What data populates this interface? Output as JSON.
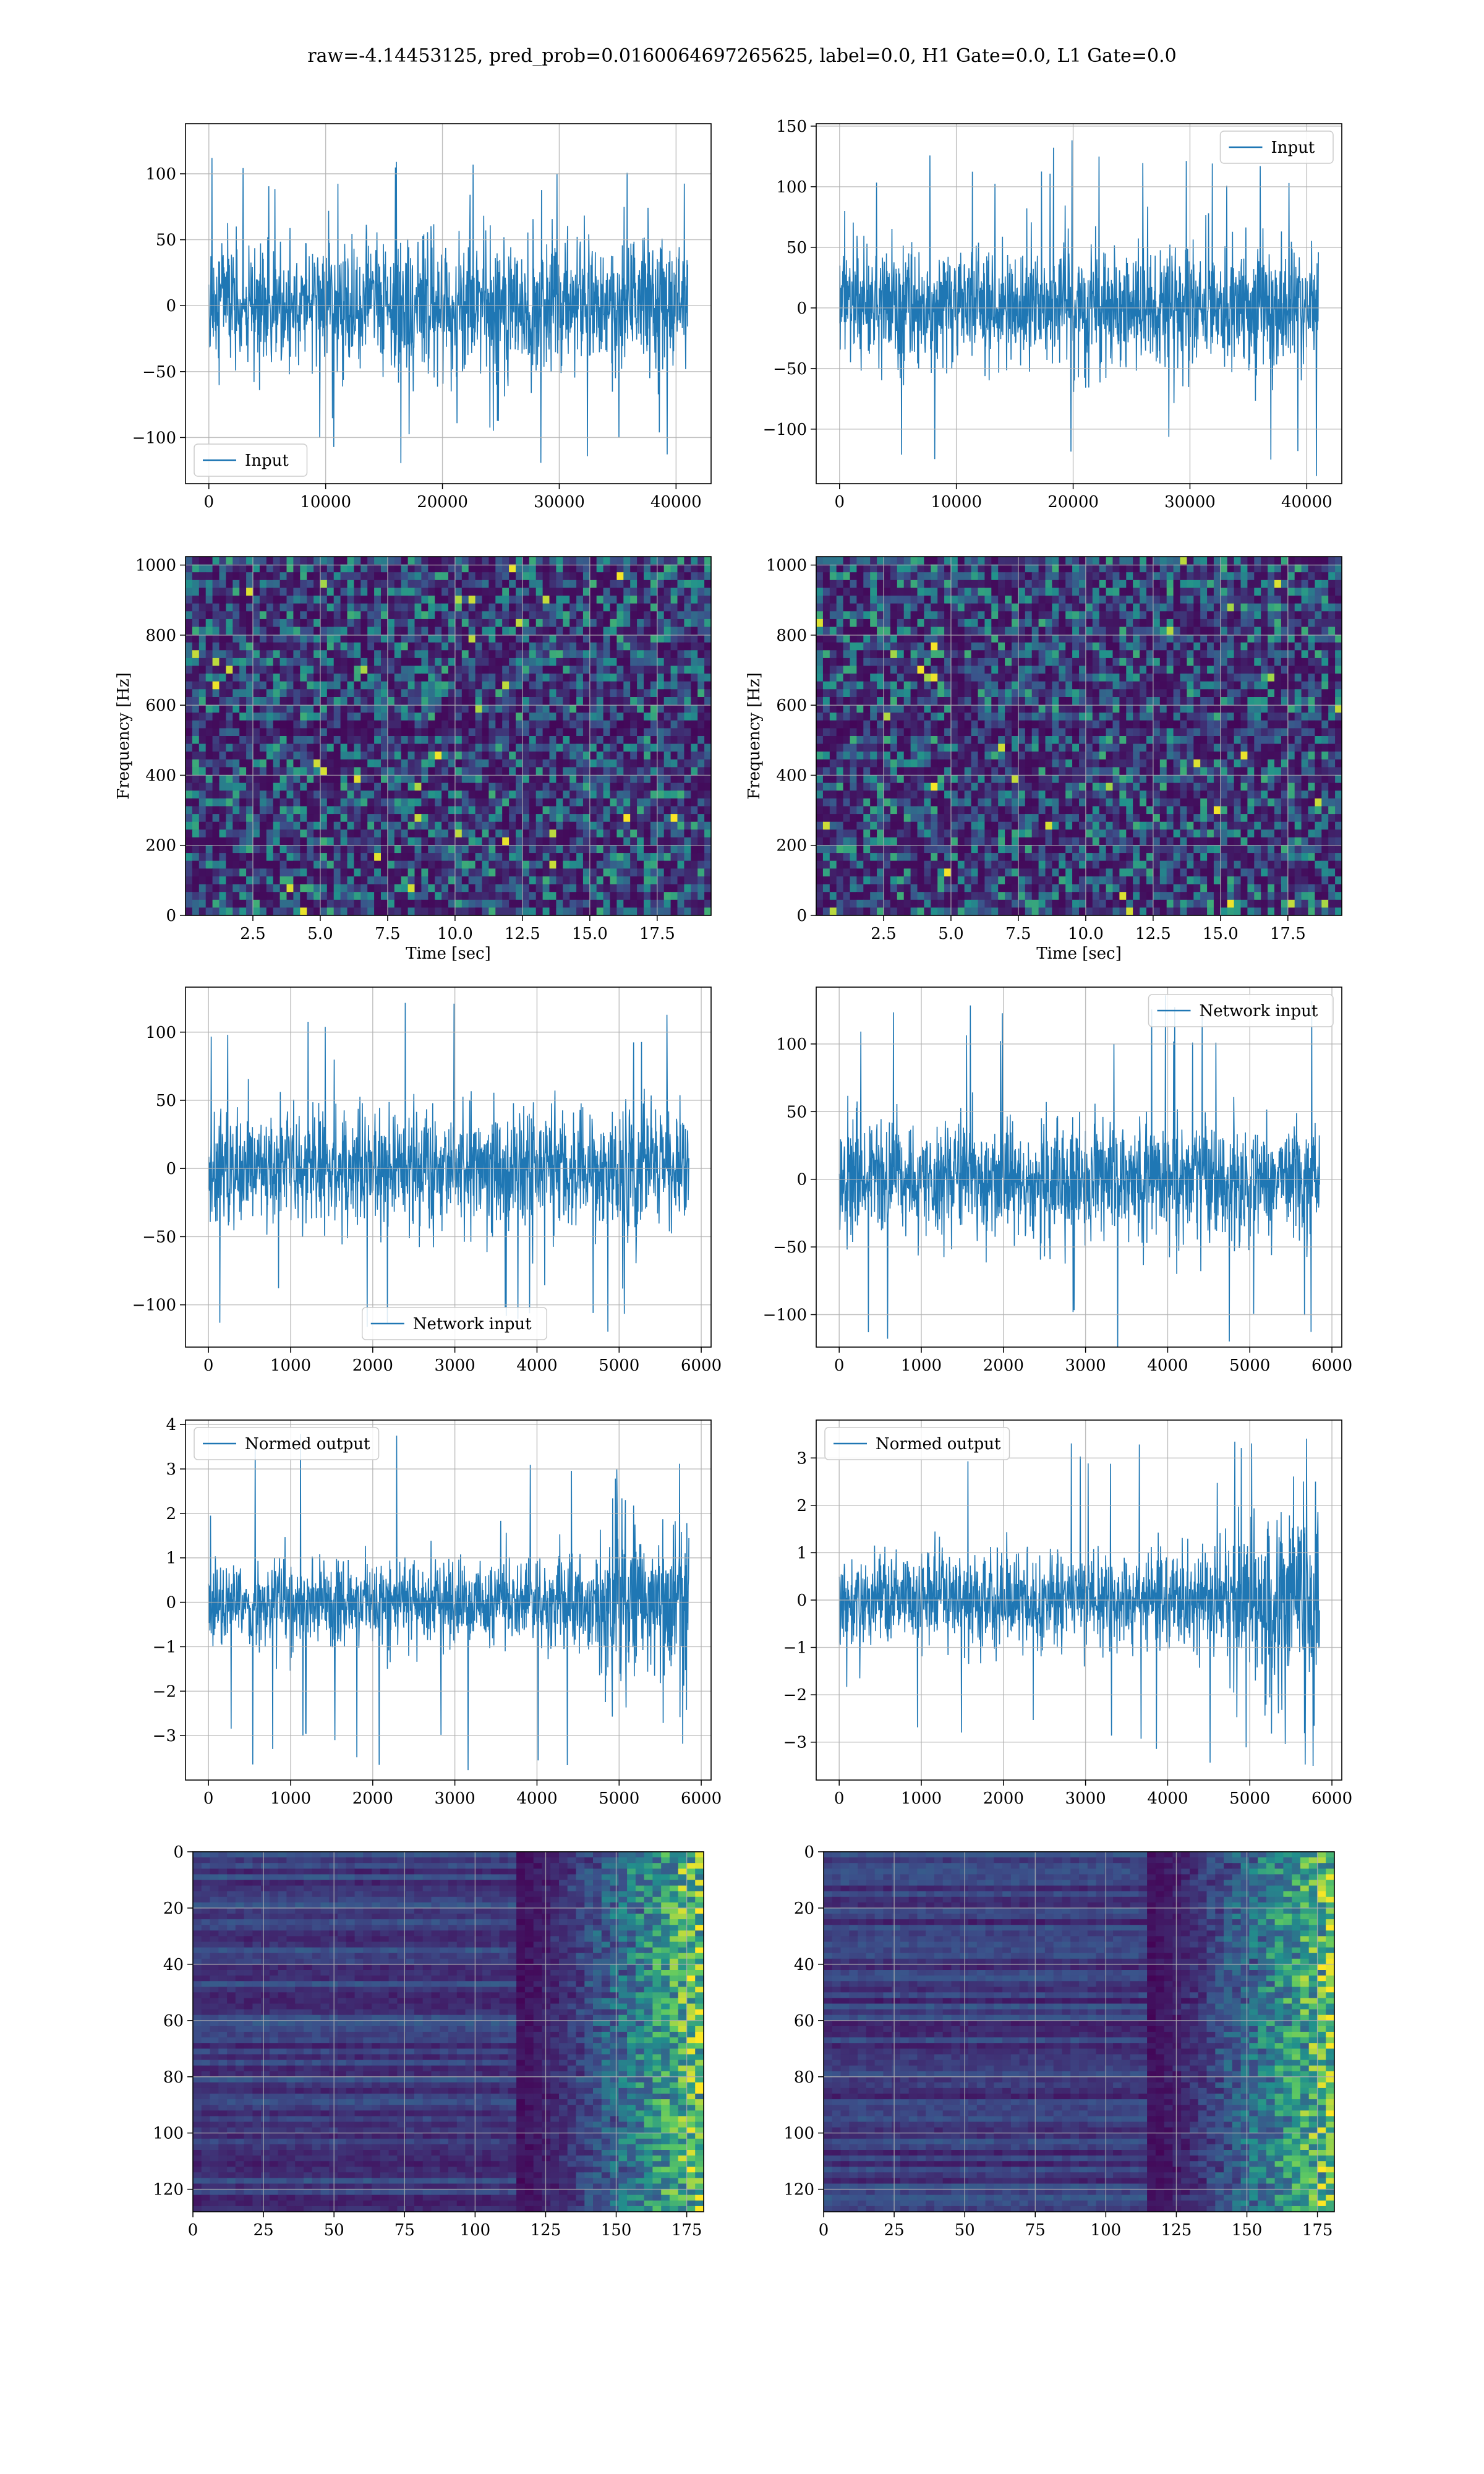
{
  "title": "raw=-4.14453125, pred_prob=0.0160064697265625, label=0.0, H1 Gate=0.0, L1 Gate=0.0",
  "colors": {
    "line": "#1f77b4",
    "grid": "#b0b0b0",
    "frame": "#000000",
    "cmap": [
      "#440154",
      "#3b528b",
      "#21918c",
      "#5ec962",
      "#fde725"
    ]
  },
  "chart_data": [
    {
      "id": "r1-left",
      "type": "line",
      "series": [
        {
          "name": "Input",
          "amplitude": 45,
          "peak": 120
        }
      ],
      "xlim": [
        -2000,
        43000
      ],
      "ylim": [
        -135,
        138
      ],
      "xticks": [
        0,
        10000,
        20000,
        30000,
        40000
      ],
      "yticks": [
        -100,
        -50,
        0,
        50,
        100
      ],
      "xticklabels": [
        "0",
        "10000",
        "20000",
        "30000",
        "40000"
      ],
      "yticklabels": [
        "−100",
        "−50",
        "0",
        "50",
        "100"
      ],
      "legend": "lower-left",
      "grid": true,
      "xlabel": "",
      "ylabel": ""
    },
    {
      "id": "r1-right",
      "type": "line",
      "series": [
        {
          "name": "Input",
          "amplitude": 45,
          "peak": 140
        }
      ],
      "xlim": [
        -2000,
        43000
      ],
      "ylim": [
        -145,
        152
      ],
      "xticks": [
        0,
        10000,
        20000,
        30000,
        40000
      ],
      "yticks": [
        -100,
        -50,
        0,
        50,
        100,
        150
      ],
      "xticklabels": [
        "0",
        "10000",
        "20000",
        "30000",
        "40000"
      ],
      "yticklabels": [
        "−100",
        "−50",
        "0",
        "50",
        "100",
        "150"
      ],
      "legend": "upper-right",
      "grid": true,
      "xlabel": "",
      "ylabel": ""
    },
    {
      "id": "r2-left",
      "type": "heatmap",
      "xlim": [
        0,
        19.5
      ],
      "ylim": [
        0,
        1024
      ],
      "xticks": [
        2.5,
        5.0,
        7.5,
        10.0,
        12.5,
        15.0,
        17.5
      ],
      "yticks": [
        0,
        200,
        400,
        600,
        800,
        1000
      ],
      "xticklabels": [
        "2.5",
        "5.0",
        "7.5",
        "10.0",
        "12.5",
        "15.0",
        "17.5"
      ],
      "yticklabels": [
        "0",
        "200",
        "400",
        "600",
        "800",
        "1000"
      ],
      "xlabel": "Time [sec]",
      "ylabel": "Frequency [Hz]",
      "grid": true
    },
    {
      "id": "r2-right",
      "type": "heatmap",
      "xlim": [
        0,
        19.5
      ],
      "ylim": [
        0,
        1024
      ],
      "xticks": [
        2.5,
        5.0,
        7.5,
        10.0,
        12.5,
        15.0,
        17.5
      ],
      "yticks": [
        0,
        200,
        400,
        600,
        800,
        1000
      ],
      "xticklabels": [
        "2.5",
        "5.0",
        "7.5",
        "10.0",
        "12.5",
        "15.0",
        "17.5"
      ],
      "yticklabels": [
        "0",
        "200",
        "400",
        "600",
        "800",
        "1000"
      ],
      "xlabel": "Time [sec]",
      "ylabel": "Frequency [Hz]",
      "grid": true
    },
    {
      "id": "r3-left",
      "type": "line",
      "series": [
        {
          "name": "Network input",
          "amplitude": 40,
          "peak": 122
        }
      ],
      "xlim": [
        -280,
        6120
      ],
      "ylim": [
        -131,
        133
      ],
      "xticks": [
        0,
        1000,
        2000,
        3000,
        4000,
        5000,
        6000
      ],
      "yticks": [
        -100,
        -50,
        0,
        50,
        100
      ],
      "xticklabels": [
        "0",
        "1000",
        "2000",
        "3000",
        "4000",
        "5000",
        "6000"
      ],
      "yticklabels": [
        "−100",
        "−50",
        "0",
        "50",
        "100"
      ],
      "legend": "lower-center",
      "grid": true,
      "xlabel": "",
      "ylabel": ""
    },
    {
      "id": "r3-right",
      "type": "line",
      "series": [
        {
          "name": "Network input",
          "amplitude": 40,
          "peak": 136
        }
      ],
      "xlim": [
        -280,
        6120
      ],
      "ylim": [
        -124,
        142
      ],
      "xticks": [
        0,
        1000,
        2000,
        3000,
        4000,
        5000,
        6000
      ],
      "yticks": [
        -100,
        -50,
        0,
        50,
        100
      ],
      "xticklabels": [
        "0",
        "1000",
        "2000",
        "3000",
        "4000",
        "5000",
        "6000"
      ],
      "yticklabels": [
        "−100",
        "−50",
        "0",
        "50",
        "100"
      ],
      "legend": "upper-right",
      "grid": true,
      "xlabel": "",
      "ylabel": ""
    },
    {
      "id": "r4-left",
      "type": "line",
      "series": [
        {
          "name": "Normed output",
          "amplitude": 0.9,
          "peak": 3.8
        }
      ],
      "xlim": [
        -280,
        6120
      ],
      "ylim": [
        -4.0,
        4.1
      ],
      "xticks": [
        0,
        1000,
        2000,
        3000,
        4000,
        5000,
        6000
      ],
      "yticks": [
        -3,
        -2,
        -1,
        0,
        1,
        2,
        3,
        4
      ],
      "xticklabels": [
        "0",
        "1000",
        "2000",
        "3000",
        "4000",
        "5000",
        "6000"
      ],
      "yticklabels": [
        "−3",
        "−2",
        "−1",
        "0",
        "1",
        "2",
        "3",
        "4"
      ],
      "legend": "upper-left",
      "grid": true,
      "xlabel": "",
      "ylabel": ""
    },
    {
      "id": "r4-right",
      "type": "line",
      "series": [
        {
          "name": "Normed output",
          "amplitude": 0.9,
          "peak": 3.5
        }
      ],
      "xlim": [
        -280,
        6120
      ],
      "ylim": [
        -3.8,
        3.8
      ],
      "xticks": [
        0,
        1000,
        2000,
        3000,
        4000,
        5000,
        6000
      ],
      "yticks": [
        -3,
        -2,
        -1,
        0,
        1,
        2,
        3
      ],
      "xticklabels": [
        "0",
        "1000",
        "2000",
        "3000",
        "4000",
        "5000",
        "6000"
      ],
      "yticklabels": [
        "−3",
        "−2",
        "−1",
        "0",
        "1",
        "2",
        "3"
      ],
      "legend": "upper-left",
      "grid": true,
      "xlabel": "",
      "ylabel": ""
    },
    {
      "id": "r5-left",
      "type": "heatmap",
      "xlim": [
        0,
        181
      ],
      "ylim": [
        128,
        0
      ],
      "xticks": [
        0,
        25,
        50,
        75,
        100,
        125,
        150,
        175
      ],
      "yticks": [
        0,
        20,
        40,
        60,
        80,
        100,
        120
      ],
      "xticklabels": [
        "0",
        "25",
        "50",
        "75",
        "100",
        "125",
        "150",
        "175"
      ],
      "yticklabels": [
        "0",
        "20",
        "40",
        "60",
        "80",
        "100",
        "120"
      ],
      "xlabel": "",
      "ylabel": "",
      "grid": true
    },
    {
      "id": "r5-right",
      "type": "heatmap",
      "xlim": [
        0,
        181
      ],
      "ylim": [
        128,
        0
      ],
      "xticks": [
        0,
        25,
        50,
        75,
        100,
        125,
        150,
        175
      ],
      "yticks": [
        0,
        20,
        40,
        60,
        80,
        100,
        120
      ],
      "xticklabels": [
        "0",
        "25",
        "50",
        "75",
        "100",
        "125",
        "150",
        "175"
      ],
      "yticklabels": [
        "0",
        "20",
        "40",
        "60",
        "80",
        "100",
        "120"
      ],
      "xlabel": "",
      "ylabel": "",
      "grid": true
    }
  ]
}
